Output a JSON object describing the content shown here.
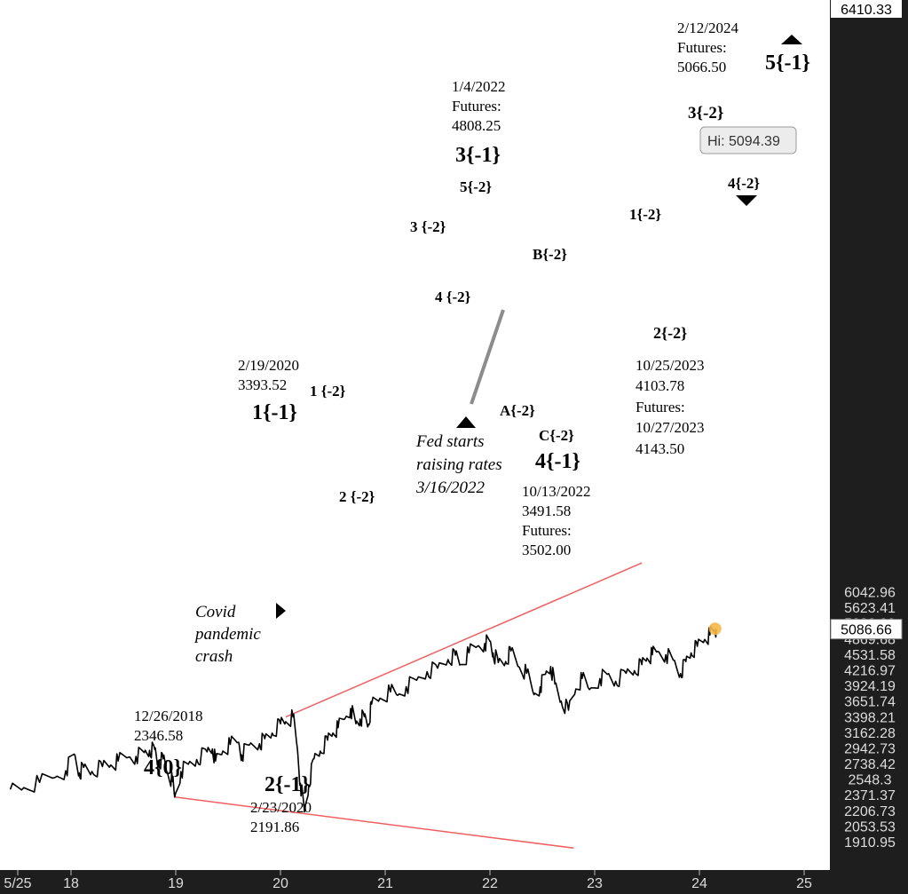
{
  "chart_data": {
    "type": "line",
    "title": "",
    "xlabel": "",
    "ylabel": "",
    "y_scale": "log",
    "ylim": [
      1850,
      6410.33
    ],
    "xlim": [
      2017.42,
      2025.25
    ],
    "x_tick_labels": [
      {
        "x": 2017.42,
        "label": "5/25"
      },
      {
        "x": 2018,
        "label": "18"
      },
      {
        "x": 2019,
        "label": "19"
      },
      {
        "x": 2020,
        "label": "20"
      },
      {
        "x": 2021,
        "label": "21"
      },
      {
        "x": 2022,
        "label": "22"
      },
      {
        "x": 2023,
        "label": "23"
      },
      {
        "x": 2024,
        "label": "24"
      },
      {
        "x": 2025,
        "label": "25"
      }
    ],
    "y_tick_labels": [
      "6042.96",
      "5623.41",
      "5232.99",
      "4869.68",
      "4531.58",
      "4216.97",
      "3924.19",
      "3651.74",
      "3398.21",
      "3162.28",
      "2942.73",
      "2738.42",
      "2548.3",
      "2371.37",
      "2206.73",
      "2053.53",
      "1910.95"
    ],
    "y_top_label": "6410.33",
    "last_price_label": "5086.66",
    "last_price": 5086.66,
    "high_label": "Hi: 5094.39",
    "series": [
      {
        "points": [
          [
            2017.42,
            2430
          ],
          [
            2017.55,
            2450
          ],
          [
            2017.7,
            2510
          ],
          [
            2017.85,
            2570
          ],
          [
            2017.95,
            2650
          ],
          [
            2018.03,
            2860
          ],
          [
            2018.08,
            2620
          ],
          [
            2018.12,
            2690
          ],
          [
            2018.2,
            2640
          ],
          [
            2018.3,
            2700
          ],
          [
            2018.38,
            2720
          ],
          [
            2018.45,
            2770
          ],
          [
            2018.55,
            2820
          ],
          [
            2018.62,
            2830
          ],
          [
            2018.7,
            2880
          ],
          [
            2018.75,
            2910
          ],
          [
            2018.8,
            2920
          ],
          [
            2018.83,
            2740
          ],
          [
            2018.88,
            2800
          ],
          [
            2018.92,
            2630
          ],
          [
            2018.97,
            2520
          ],
          [
            2018.99,
            2346.58
          ],
          [
            2019.05,
            2640
          ],
          [
            2019.12,
            2730
          ],
          [
            2019.2,
            2790
          ],
          [
            2019.3,
            2890
          ],
          [
            2019.35,
            2930
          ],
          [
            2019.38,
            2770
          ],
          [
            2019.45,
            2900
          ],
          [
            2019.52,
            2990
          ],
          [
            2019.6,
            3020
          ],
          [
            2019.63,
            2850
          ],
          [
            2019.7,
            2980
          ],
          [
            2019.8,
            3000
          ],
          [
            2019.85,
            3070
          ],
          [
            2019.92,
            3150
          ],
          [
            2020.0,
            3290
          ],
          [
            2020.05,
            3320
          ],
          [
            2020.12,
            3393.52
          ],
          [
            2020.16,
            2950
          ],
          [
            2020.19,
            2500
          ],
          [
            2020.23,
            2191.86
          ],
          [
            2020.27,
            2480
          ],
          [
            2020.32,
            2800
          ],
          [
            2020.38,
            2900
          ],
          [
            2020.45,
            3050
          ],
          [
            2020.5,
            3150
          ],
          [
            2020.55,
            3230
          ],
          [
            2020.62,
            3380
          ],
          [
            2020.67,
            3530
          ],
          [
            2020.72,
            3290
          ],
          [
            2020.76,
            3360
          ],
          [
            2020.8,
            3400
          ],
          [
            2020.84,
            3280
          ],
          [
            2020.87,
            3600
          ],
          [
            2020.95,
            3700
          ],
          [
            2021.05,
            3810
          ],
          [
            2021.12,
            3750
          ],
          [
            2021.2,
            3900
          ],
          [
            2021.3,
            4020
          ],
          [
            2021.4,
            4180
          ],
          [
            2021.5,
            4250
          ],
          [
            2021.6,
            4420
          ],
          [
            2021.67,
            4510
          ],
          [
            2021.72,
            4320
          ],
          [
            2021.8,
            4560
          ],
          [
            2021.88,
            4700
          ],
          [
            2021.95,
            4760
          ],
          [
            2022.0,
            4808.25
          ],
          [
            2022.03,
            4560
          ],
          [
            2022.08,
            4360
          ],
          [
            2022.15,
            4380
          ],
          [
            2022.2,
            4600
          ],
          [
            2022.28,
            4270
          ],
          [
            2022.35,
            4150
          ],
          [
            2022.42,
            3760
          ],
          [
            2022.48,
            3900
          ],
          [
            2022.53,
            4130
          ],
          [
            2022.58,
            4280
          ],
          [
            2022.62,
            3950
          ],
          [
            2022.68,
            3650
          ],
          [
            2022.75,
            3502.0
          ],
          [
            2022.82,
            3860
          ],
          [
            2022.88,
            4050
          ],
          [
            2022.95,
            3850
          ],
          [
            2023.05,
            4050
          ],
          [
            2023.12,
            4130
          ],
          [
            2023.2,
            4000
          ],
          [
            2023.3,
            4150
          ],
          [
            2023.38,
            4200
          ],
          [
            2023.45,
            4320
          ],
          [
            2023.5,
            4450
          ],
          [
            2023.55,
            4520
          ],
          [
            2023.6,
            4590
          ],
          [
            2023.68,
            4520
          ],
          [
            2023.75,
            4410
          ],
          [
            2023.82,
            4143.5
          ],
          [
            2023.87,
            4380
          ],
          [
            2023.92,
            4560
          ],
          [
            2023.98,
            4700
          ],
          [
            2024.05,
            4850
          ],
          [
            2024.1,
            4950
          ],
          [
            2024.14,
            5066.5
          ],
          [
            2024.16,
            5086.66
          ]
        ]
      }
    ],
    "channel_lines": [
      {
        "from": [
          2020.05,
          3393.52
        ],
        "to": [
          2023.45,
          6900
        ]
      },
      {
        "from": [
          2018.99,
          2346.58
        ],
        "to": [
          2022.8,
          1855
        ]
      }
    ],
    "annotations": [
      {
        "x": 2018.99,
        "y": 2346.58,
        "lines": [
          "12/26/2018",
          "2346.58"
        ],
        "label": "4{0}"
      },
      {
        "x": 2020.05,
        "y": 3393.52,
        "lines": [
          "2/19/2020",
          "3393.52"
        ],
        "label": "1{-1}"
      },
      {
        "x": 2020.23,
        "y": 2191.86,
        "lines": [
          "2/23/2020",
          "2191.86"
        ],
        "label": "2{-1}"
      },
      {
        "x": 2022.0,
        "y": 4808.25,
        "lines": [
          "1/4/2022",
          "Futures:",
          "4808.25"
        ],
        "label": "3{-1}"
      },
      {
        "x": 2022.75,
        "y": 3491.58,
        "lines": [
          "10/13/2022",
          "3491.58",
          "Futures:",
          "3502.00"
        ],
        "label": "4{-1}"
      },
      {
        "x": 2023.82,
        "y": 4103.78,
        "lines": [
          "10/25/2023",
          "4103.78",
          "Futures:",
          "10/27/2023",
          "4143.50"
        ],
        "label": "2{-2}"
      },
      {
        "x": 2024.14,
        "y": 5066.5,
        "lines": [
          "2/12/2024",
          "Futures:",
          "5066.50"
        ],
        "label": "3{-2}"
      }
    ],
    "wave_labels": [
      "1 {-2}",
      "2 {-2}",
      "3 {-2}",
      "4 {-2}",
      "5{-2}",
      "A{-2}",
      "B{-2}",
      "C{-2}",
      "1{-2}",
      "4{-2}",
      "5{-1}"
    ],
    "notes": [
      {
        "lines": [
          "Covid",
          "pandemic",
          "crash"
        ]
      },
      {
        "lines": [
          "Fed starts",
          "raising rates",
          "3/16/2022"
        ]
      }
    ]
  }
}
